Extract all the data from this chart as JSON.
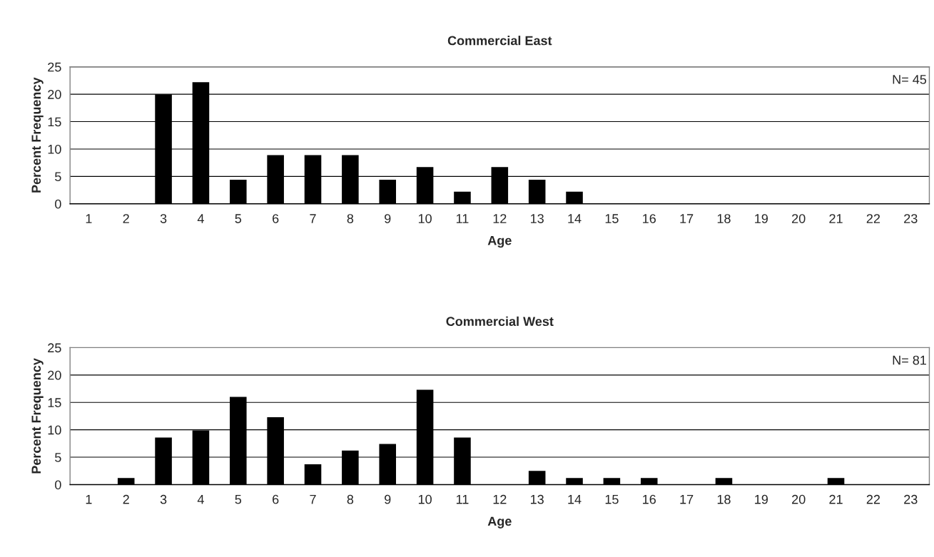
{
  "chart_data": [
    {
      "type": "bar",
      "title": "Commercial East",
      "xlabel": "Age",
      "ylabel": "Percent Frequency",
      "categories": [
        "1",
        "2",
        "3",
        "4",
        "5",
        "6",
        "7",
        "8",
        "9",
        "10",
        "11",
        "12",
        "13",
        "14",
        "15",
        "16",
        "17",
        "18",
        "19",
        "20",
        "21",
        "22",
        "23"
      ],
      "values": [
        0,
        0,
        20,
        22.2,
        4.4,
        8.9,
        8.9,
        8.9,
        4.4,
        6.7,
        2.2,
        6.7,
        4.4,
        2.2,
        0,
        0,
        0,
        0,
        0,
        0,
        0,
        0,
        0
      ],
      "color": "#000000",
      "ylim": [
        0,
        25
      ],
      "yticks": [
        0,
        5,
        10,
        15,
        20,
        25
      ],
      "grid": "y",
      "legend": false,
      "annotations": [
        "N= 45"
      ]
    },
    {
      "type": "bar",
      "title": "Commercial West",
      "xlabel": "Age",
      "ylabel": "Percent Frequency",
      "categories": [
        "1",
        "2",
        "3",
        "4",
        "5",
        "6",
        "7",
        "8",
        "9",
        "10",
        "11",
        "12",
        "13",
        "14",
        "15",
        "16",
        "17",
        "18",
        "19",
        "20",
        "21",
        "22",
        "23"
      ],
      "values": [
        0,
        1.2,
        8.6,
        9.9,
        16.0,
        12.3,
        3.7,
        6.2,
        7.4,
        17.3,
        8.6,
        0,
        2.5,
        1.2,
        1.2,
        1.2,
        0,
        1.2,
        0,
        0,
        1.2,
        0,
        0
      ],
      "color": "#000000",
      "ylim": [
        0,
        25
      ],
      "yticks": [
        0,
        5,
        10,
        15,
        20,
        25
      ],
      "grid": "y",
      "legend": false,
      "annotations": [
        "N= 81"
      ]
    }
  ]
}
